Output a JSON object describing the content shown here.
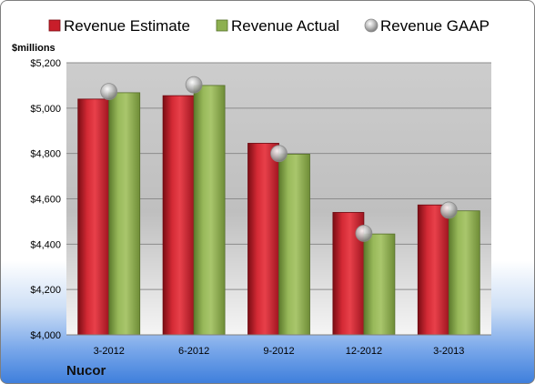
{
  "company": "Nucor",
  "chart_data": {
    "type": "bar",
    "ylabel": "$millions",
    "categories": [
      "3-2012",
      "6-2012",
      "9-2012",
      "12-2012",
      "3-2013"
    ],
    "ylim": [
      4000,
      5200
    ],
    "yticks": [
      4000,
      4200,
      4400,
      4600,
      4800,
      5000,
      5200
    ],
    "ytick_labels": [
      "$4,000",
      "$4,200",
      "$4,400",
      "$4,600",
      "$4,800",
      "$5,000",
      "$5,200"
    ],
    "grid": true,
    "legend_position": "top",
    "series": [
      {
        "name": "Revenue Estimate",
        "type": "bar",
        "color": "#cc1f2b",
        "values": [
          5040,
          5055,
          4845,
          4540,
          4573
        ]
      },
      {
        "name": "Revenue Actual",
        "type": "bar",
        "color": "#86a84a",
        "values": [
          5068,
          5100,
          4797,
          4445,
          4547
        ]
      },
      {
        "name": "Revenue GAAP",
        "type": "scatter",
        "color": "#a9a9a9",
        "values": [
          5073,
          5103,
          4800,
          4448,
          4550
        ]
      }
    ]
  }
}
